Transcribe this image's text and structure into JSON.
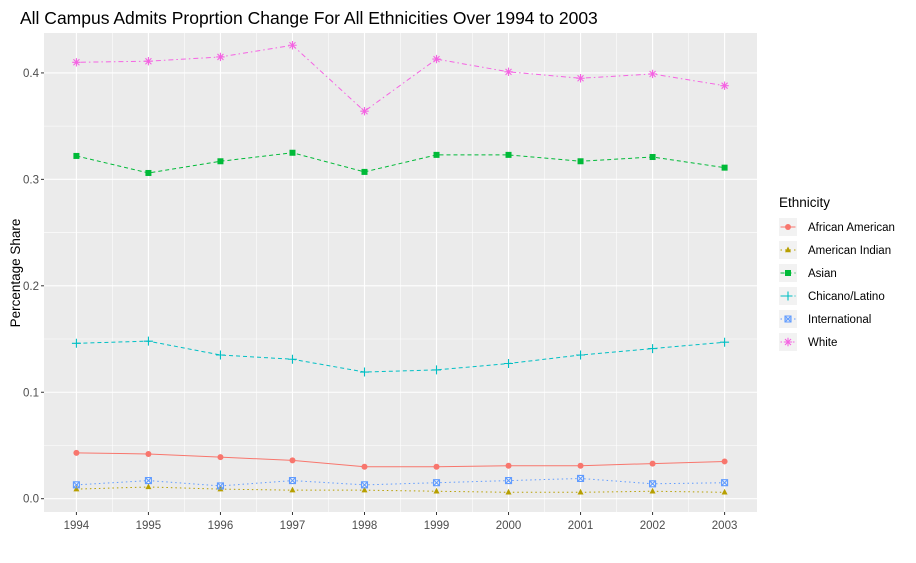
{
  "chart_data": {
    "type": "line",
    "title": "All Campus Admits Proprtion Change For All Ethnicities Over 1994 to 2003",
    "xlabel": "",
    "ylabel": "Percentage Share",
    "x": [
      1994,
      1995,
      1996,
      1997,
      1998,
      1999,
      2000,
      2001,
      2002,
      2003
    ],
    "x_tick_labels": [
      "1994",
      "1995",
      "1996",
      "1997",
      "1998",
      "1999",
      "2000",
      "2001",
      "2002",
      "2003"
    ],
    "y_ticks": [
      0.0,
      0.1,
      0.2,
      0.3,
      0.4
    ],
    "y_tick_labels": [
      "0.0",
      "0.1",
      "0.2",
      "0.3",
      "0.4"
    ],
    "xlim": [
      1993.55,
      2003.45
    ],
    "ylim": [
      -0.0125,
      0.4375
    ],
    "grid": true,
    "legend": {
      "title": "Ethnicity",
      "position": "right"
    },
    "series": [
      {
        "name": "African American",
        "color": "#F8766D",
        "marker": "circle",
        "dash": "solid",
        "values": [
          0.043,
          0.042,
          0.039,
          0.036,
          0.03,
          0.03,
          0.031,
          0.031,
          0.033,
          0.035
        ]
      },
      {
        "name": "American Indian",
        "color": "#B79F00",
        "marker": "triangle",
        "dash": "dotted",
        "values": [
          0.009,
          0.011,
          0.009,
          0.008,
          0.008,
          0.007,
          0.006,
          0.006,
          0.007,
          0.006
        ]
      },
      {
        "name": "Asian",
        "color": "#00BA38",
        "marker": "square",
        "dash": "dashed",
        "values": [
          0.322,
          0.306,
          0.317,
          0.325,
          0.307,
          0.323,
          0.323,
          0.317,
          0.321,
          0.311
        ]
      },
      {
        "name": "Chicano/Latino",
        "color": "#00BFC4",
        "marker": "plus",
        "dash": "dashed",
        "values": [
          0.146,
          0.148,
          0.135,
          0.131,
          0.119,
          0.121,
          0.127,
          0.135,
          0.141,
          0.147
        ]
      },
      {
        "name": "International",
        "color": "#619CFF",
        "marker": "boxcross",
        "dash": "dotted",
        "values": [
          0.013,
          0.017,
          0.012,
          0.017,
          0.013,
          0.015,
          0.017,
          0.019,
          0.014,
          0.015
        ]
      },
      {
        "name": "White",
        "color": "#F564E3",
        "marker": "asterisk",
        "dash": "dashdot",
        "values": [
          0.41,
          0.411,
          0.415,
          0.426,
          0.364,
          0.413,
          0.401,
          0.395,
          0.399,
          0.388
        ]
      }
    ]
  }
}
